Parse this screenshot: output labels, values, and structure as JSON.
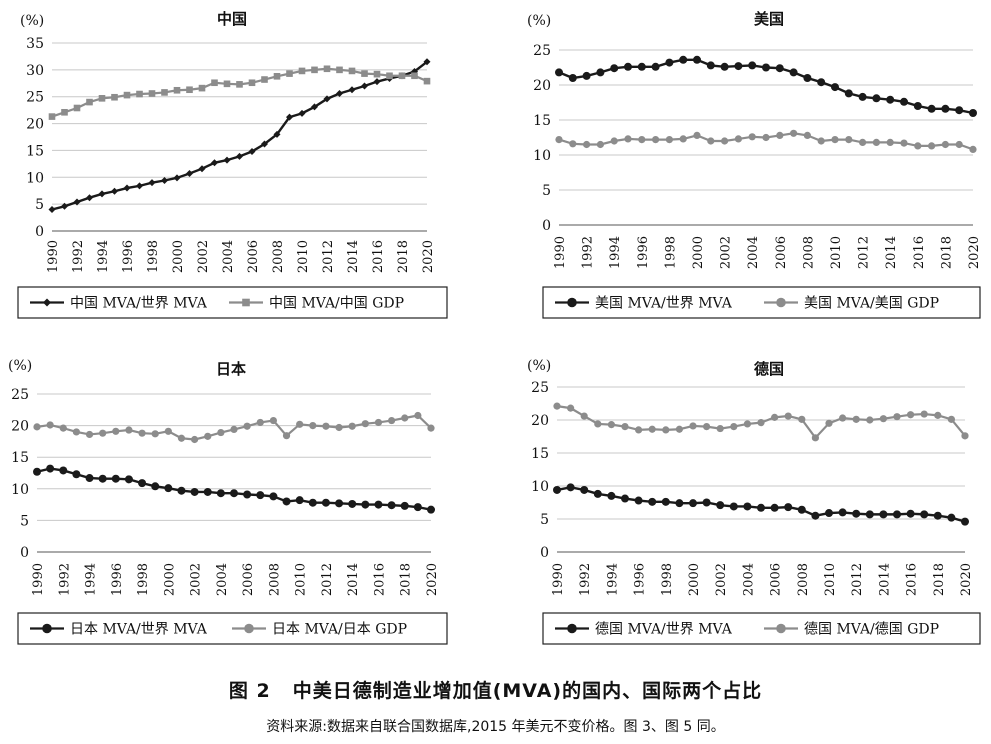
{
  "figure": {
    "number": "图 2",
    "title": "中美日德制造业增加值(MVA)的国内、国际两个占比",
    "source": "资料来源:数据来自联合国数据库,2015 年美元不变价格。图 3、图 5 同。"
  },
  "colors": {
    "dark": "#1a1a1a",
    "gray": "#8c8c8c",
    "grid": "#c8c8c8"
  },
  "chart_data": [
    {
      "type": "line",
      "title": "中国",
      "unit": "(%)",
      "ylim": [
        0,
        35
      ],
      "yticks": [
        0,
        5,
        10,
        15,
        20,
        25,
        30,
        35
      ],
      "x": [
        1990,
        1991,
        1992,
        1993,
        1994,
        1995,
        1996,
        1997,
        1998,
        1999,
        2000,
        2001,
        2002,
        2003,
        2004,
        2005,
        2006,
        2007,
        2008,
        2009,
        2010,
        2011,
        2012,
        2013,
        2014,
        2015,
        2016,
        2017,
        2018,
        2019,
        2020
      ],
      "xticks": [
        "1990",
        "1992",
        "1994",
        "1996",
        "1998",
        "2000",
        "2002",
        "2004",
        "2006",
        "2008",
        "2010",
        "2012",
        "2014",
        "2016",
        "2018",
        "2020"
      ],
      "legend_position": "bottom",
      "series": [
        {
          "name": "中国 MVA/世界 MVA",
          "marker": "diamond",
          "color": "dark",
          "values": [
            4.0,
            4.6,
            5.4,
            6.2,
            6.9,
            7.4,
            8.0,
            8.4,
            9.0,
            9.4,
            9.9,
            10.7,
            11.6,
            12.7,
            13.2,
            13.9,
            14.8,
            16.2,
            18.0,
            21.2,
            21.9,
            23.1,
            24.6,
            25.6,
            26.3,
            27.0,
            27.8,
            28.4,
            28.9,
            29.7,
            31.5
          ]
        },
        {
          "name": "中国 MVA/中国 GDP",
          "marker": "square",
          "color": "gray",
          "values": [
            21.3,
            22.1,
            22.9,
            24.0,
            24.7,
            24.9,
            25.3,
            25.5,
            25.6,
            25.8,
            26.2,
            26.3,
            26.6,
            27.6,
            27.4,
            27.3,
            27.6,
            28.2,
            28.8,
            29.3,
            29.8,
            30.0,
            30.2,
            30.0,
            29.8,
            29.3,
            29.2,
            28.9,
            28.9,
            28.9,
            27.9
          ]
        }
      ]
    },
    {
      "type": "line",
      "title": "美国",
      "unit": "(%)",
      "ylim": [
        0,
        25
      ],
      "yticks": [
        0,
        5,
        10,
        15,
        20,
        25
      ],
      "x": [
        1990,
        1991,
        1992,
        1993,
        1994,
        1995,
        1996,
        1997,
        1998,
        1999,
        2000,
        2001,
        2002,
        2003,
        2004,
        2005,
        2006,
        2007,
        2008,
        2009,
        2010,
        2011,
        2012,
        2013,
        2014,
        2015,
        2016,
        2017,
        2018,
        2019,
        2020
      ],
      "xticks": [
        "1990",
        "1992",
        "1994",
        "1996",
        "1998",
        "2000",
        "2002",
        "2004",
        "2006",
        "2008",
        "2010",
        "2012",
        "2014",
        "2016",
        "2018",
        "2020"
      ],
      "legend_position": "bottom",
      "series": [
        {
          "name": "美国 MVA/世界 MVA",
          "marker": "circle",
          "color": "dark",
          "values": [
            21.8,
            21.0,
            21.3,
            21.8,
            22.4,
            22.6,
            22.6,
            22.6,
            23.2,
            23.6,
            23.6,
            22.8,
            22.6,
            22.7,
            22.8,
            22.5,
            22.4,
            21.8,
            21.0,
            20.4,
            19.7,
            18.8,
            18.3,
            18.1,
            17.9,
            17.6,
            17.0,
            16.6,
            16.6,
            16.4,
            16.0
          ]
        },
        {
          "name": "美国 MVA/美国 GDP",
          "marker": "circle",
          "color": "gray",
          "values": [
            12.2,
            11.6,
            11.5,
            11.5,
            12.0,
            12.3,
            12.2,
            12.2,
            12.2,
            12.3,
            12.8,
            12.0,
            12.0,
            12.3,
            12.6,
            12.5,
            12.8,
            13.1,
            12.8,
            12.0,
            12.2,
            12.2,
            11.8,
            11.8,
            11.8,
            11.7,
            11.3,
            11.3,
            11.5,
            11.5,
            10.8
          ]
        }
      ]
    },
    {
      "type": "line",
      "title": "日本",
      "unit": "(%)",
      "ylim": [
        0,
        25
      ],
      "yticks": [
        0,
        5,
        10,
        15,
        20,
        25
      ],
      "x": [
        1990,
        1991,
        1992,
        1993,
        1994,
        1995,
        1996,
        1997,
        1998,
        1999,
        2000,
        2001,
        2002,
        2003,
        2004,
        2005,
        2006,
        2007,
        2008,
        2009,
        2010,
        2011,
        2012,
        2013,
        2014,
        2015,
        2016,
        2017,
        2018,
        2019,
        2020
      ],
      "xticks": [
        "1990",
        "1992",
        "1994",
        "1996",
        "1998",
        "2000",
        "2002",
        "2004",
        "2006",
        "2008",
        "2010",
        "2012",
        "2014",
        "2016",
        "2018",
        "2020"
      ],
      "legend_position": "bottom",
      "series": [
        {
          "name": "日本 MVA/世界 MVA",
          "marker": "circle",
          "color": "dark",
          "values": [
            12.7,
            13.2,
            12.9,
            12.3,
            11.7,
            11.6,
            11.6,
            11.5,
            10.9,
            10.4,
            10.1,
            9.7,
            9.5,
            9.5,
            9.3,
            9.3,
            9.1,
            9.0,
            8.8,
            8.0,
            8.2,
            7.8,
            7.8,
            7.7,
            7.6,
            7.5,
            7.5,
            7.4,
            7.3,
            7.1,
            6.7
          ]
        },
        {
          "name": "日本 MVA/日本 GDP",
          "marker": "circle",
          "color": "gray",
          "values": [
            19.8,
            20.1,
            19.6,
            19.0,
            18.6,
            18.8,
            19.1,
            19.3,
            18.8,
            18.7,
            19.1,
            18.0,
            17.8,
            18.3,
            18.9,
            19.4,
            19.9,
            20.5,
            20.8,
            18.4,
            20.2,
            20.0,
            19.9,
            19.7,
            19.9,
            20.3,
            20.5,
            20.8,
            21.2,
            21.6,
            19.6
          ]
        }
      ]
    },
    {
      "type": "line",
      "title": "德国",
      "unit": "(%)",
      "ylim": [
        0,
        25
      ],
      "yticks": [
        0,
        5,
        10,
        15,
        20,
        25
      ],
      "x": [
        1990,
        1991,
        1992,
        1993,
        1994,
        1995,
        1996,
        1997,
        1998,
        1999,
        2000,
        2001,
        2002,
        2003,
        2004,
        2005,
        2006,
        2007,
        2008,
        2009,
        2010,
        2011,
        2012,
        2013,
        2014,
        2015,
        2016,
        2017,
        2018,
        2019,
        2020
      ],
      "xticks": [
        "1990",
        "1992",
        "1994",
        "1996",
        "1998",
        "2000",
        "2002",
        "2004",
        "2006",
        "2008",
        "2010",
        "2012",
        "2014",
        "2016",
        "2018",
        "2020"
      ],
      "legend_position": "bottom",
      "series": [
        {
          "name": "德国 MVA/世界 MVA",
          "marker": "circle",
          "color": "dark",
          "values": [
            9.4,
            9.8,
            9.4,
            8.8,
            8.5,
            8.1,
            7.8,
            7.6,
            7.6,
            7.4,
            7.4,
            7.5,
            7.1,
            6.9,
            6.9,
            6.7,
            6.7,
            6.8,
            6.4,
            5.5,
            5.9,
            6.0,
            5.8,
            5.7,
            5.7,
            5.7,
            5.8,
            5.7,
            5.5,
            5.2,
            4.6
          ]
        },
        {
          "name": "德国 MVA/德国 GDP",
          "marker": "circle",
          "color": "gray",
          "values": [
            22.1,
            21.8,
            20.6,
            19.4,
            19.3,
            19.0,
            18.5,
            18.6,
            18.5,
            18.6,
            19.1,
            19.0,
            18.7,
            19.0,
            19.4,
            19.6,
            20.4,
            20.6,
            20.1,
            17.3,
            19.5,
            20.3,
            20.1,
            20.0,
            20.2,
            20.5,
            20.8,
            20.9,
            20.7,
            20.1,
            17.6
          ]
        }
      ]
    }
  ]
}
